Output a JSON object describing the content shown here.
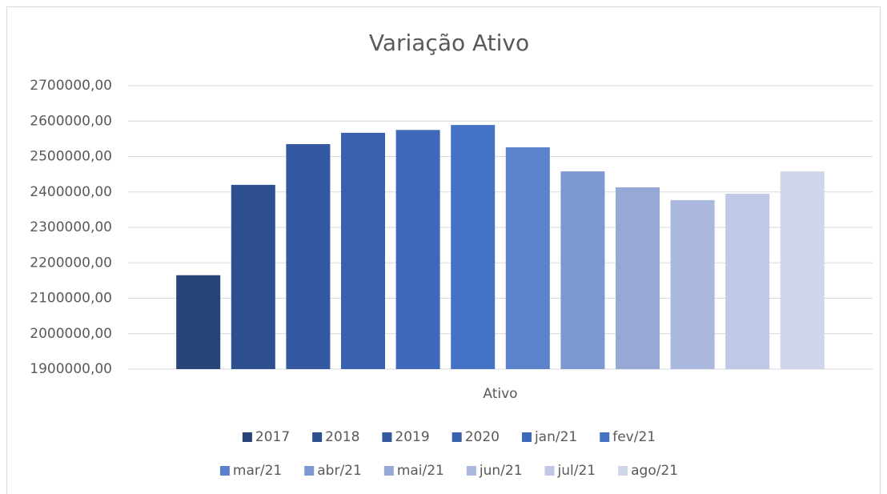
{
  "chart_data": {
    "type": "bar",
    "title": "Variação Ativo",
    "categories": [
      "Ativo"
    ],
    "series": [
      {
        "name": "2017",
        "color": "#264478",
        "values": [
          2165000
        ]
      },
      {
        "name": "2018",
        "color": "#2d4f8d",
        "values": [
          2420000
        ]
      },
      {
        "name": "2019",
        "color": "#3459a0",
        "values": [
          2535000
        ]
      },
      {
        "name": "2020",
        "color": "#3a61ae",
        "values": [
          2567000
        ]
      },
      {
        "name": "jan/21",
        "color": "#3e68ba",
        "values": [
          2575000
        ]
      },
      {
        "name": "fev/21",
        "color": "#4472c4",
        "values": [
          2589000
        ]
      },
      {
        "name": "mar/21",
        "color": "#5b82ca",
        "values": [
          2526000
        ]
      },
      {
        "name": "abr/21",
        "color": "#7d97d0",
        "values": [
          2458000
        ]
      },
      {
        "name": "mai/21",
        "color": "#96a8d6",
        "values": [
          2413000
        ]
      },
      {
        "name": "jun/21",
        "color": "#abb8de",
        "values": [
          2377000
        ]
      },
      {
        "name": "jul/21",
        "color": "#bfc8e4",
        "values": [
          2395000
        ]
      },
      {
        "name": "ago/21",
        "color": "#d0d6ea",
        "values": [
          2458000
        ]
      }
    ],
    "ylim": [
      1900000,
      2700000
    ],
    "yticks": [
      {
        "value": 1900000,
        "label": "1900000,00"
      },
      {
        "value": 2000000,
        "label": "2000000,00"
      },
      {
        "value": 2100000,
        "label": "2100000,00"
      },
      {
        "value": 2200000,
        "label": "2200000,00"
      },
      {
        "value": 2300000,
        "label": "2300000,00"
      },
      {
        "value": 2400000,
        "label": "2400000,00"
      },
      {
        "value": 2500000,
        "label": "2500000,00"
      },
      {
        "value": 2600000,
        "label": "2600000,00"
      },
      {
        "value": 2700000,
        "label": "2700000,00"
      }
    ],
    "grid": true,
    "legend": "bottom"
  }
}
